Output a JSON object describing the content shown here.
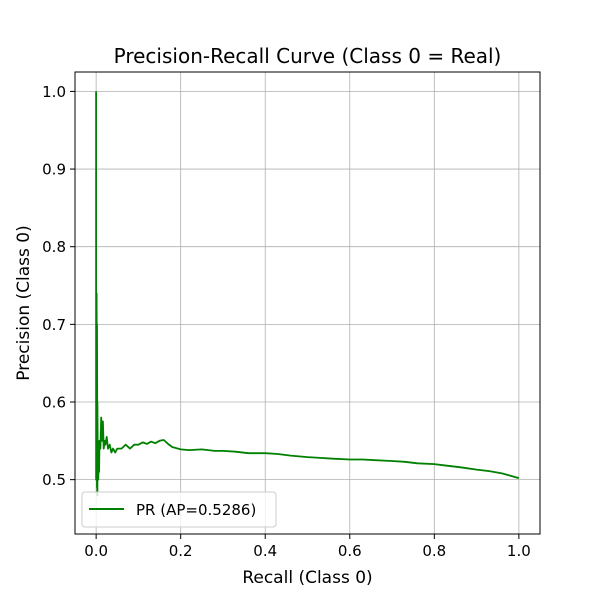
{
  "chart_data": {
    "type": "line",
    "title": "Precision-Recall Curve (Class 0 = Real)",
    "xlabel": "Recall (Class 0)",
    "ylabel": "Precision (Class 0)",
    "xlim": [
      -0.05,
      1.05
    ],
    "ylim": [
      0.43,
      1.025
    ],
    "xticks": [
      0.0,
      0.2,
      0.4,
      0.6,
      0.8,
      1.0
    ],
    "xtick_labels": [
      "0.0",
      "0.2",
      "0.4",
      "0.6",
      "0.8",
      "1.0"
    ],
    "yticks": [
      0.5,
      0.6,
      0.7,
      0.8,
      0.9,
      1.0
    ],
    "ytick_labels": [
      "0.5",
      "0.6",
      "0.7",
      "0.8",
      "0.9",
      "1.0"
    ],
    "grid": true,
    "legend_position": "lower-left",
    "series": [
      {
        "name": "PR (AP=0.5286)",
        "color": "#008000",
        "x": [
          0.0,
          0.0,
          0.001,
          0.001,
          0.002,
          0.002,
          0.003,
          0.003,
          0.004,
          0.004,
          0.005,
          0.006,
          0.007,
          0.008,
          0.01,
          0.012,
          0.014,
          0.016,
          0.018,
          0.02,
          0.022,
          0.025,
          0.028,
          0.032,
          0.036,
          0.04,
          0.045,
          0.05,
          0.06,
          0.07,
          0.08,
          0.09,
          0.1,
          0.11,
          0.12,
          0.13,
          0.14,
          0.15,
          0.16,
          0.17,
          0.18,
          0.2,
          0.22,
          0.25,
          0.28,
          0.3,
          0.33,
          0.36,
          0.4,
          0.43,
          0.46,
          0.5,
          0.53,
          0.56,
          0.6,
          0.63,
          0.66,
          0.7,
          0.73,
          0.76,
          0.8,
          0.83,
          0.86,
          0.9,
          0.93,
          0.96,
          1.0
        ],
        "y": [
          1.0,
          0.5,
          0.5,
          0.74,
          0.49,
          0.7,
          0.48,
          0.6,
          0.52,
          0.55,
          0.5,
          0.53,
          0.51,
          0.55,
          0.54,
          0.58,
          0.55,
          0.575,
          0.54,
          0.55,
          0.545,
          0.555,
          0.54,
          0.545,
          0.535,
          0.54,
          0.535,
          0.54,
          0.54,
          0.545,
          0.54,
          0.545,
          0.545,
          0.548,
          0.546,
          0.549,
          0.547,
          0.55,
          0.551,
          0.546,
          0.542,
          0.539,
          0.538,
          0.539,
          0.537,
          0.537,
          0.536,
          0.534,
          0.534,
          0.533,
          0.531,
          0.529,
          0.528,
          0.527,
          0.526,
          0.526,
          0.525,
          0.524,
          0.523,
          0.521,
          0.52,
          0.518,
          0.516,
          0.513,
          0.511,
          0.508,
          0.502
        ]
      }
    ]
  }
}
